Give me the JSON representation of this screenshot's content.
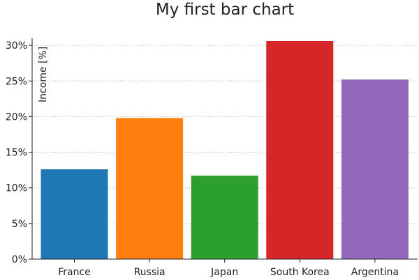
{
  "chart_data": {
    "type": "bar",
    "title": "My first bar chart",
    "xlabel": "",
    "ylabel": "Income [%]",
    "categories": [
      "France",
      "Russia",
      "Japan",
      "South Korea",
      "Argentina"
    ],
    "values": [
      12.6,
      19.8,
      11.7,
      30.6,
      25.2
    ],
    "colors": [
      "#1f77b4",
      "#ff7f0e",
      "#2ca02c",
      "#d62728",
      "#9467bd"
    ],
    "ylim": [
      0,
      31
    ],
    "yticks": [
      0,
      5,
      10,
      15,
      20,
      25,
      30
    ],
    "ytick_labels": [
      "0%",
      "5%",
      "10%",
      "15%",
      "20%",
      "25%",
      "30%"
    ],
    "grid": "horizontal dotted",
    "legend": "none"
  }
}
